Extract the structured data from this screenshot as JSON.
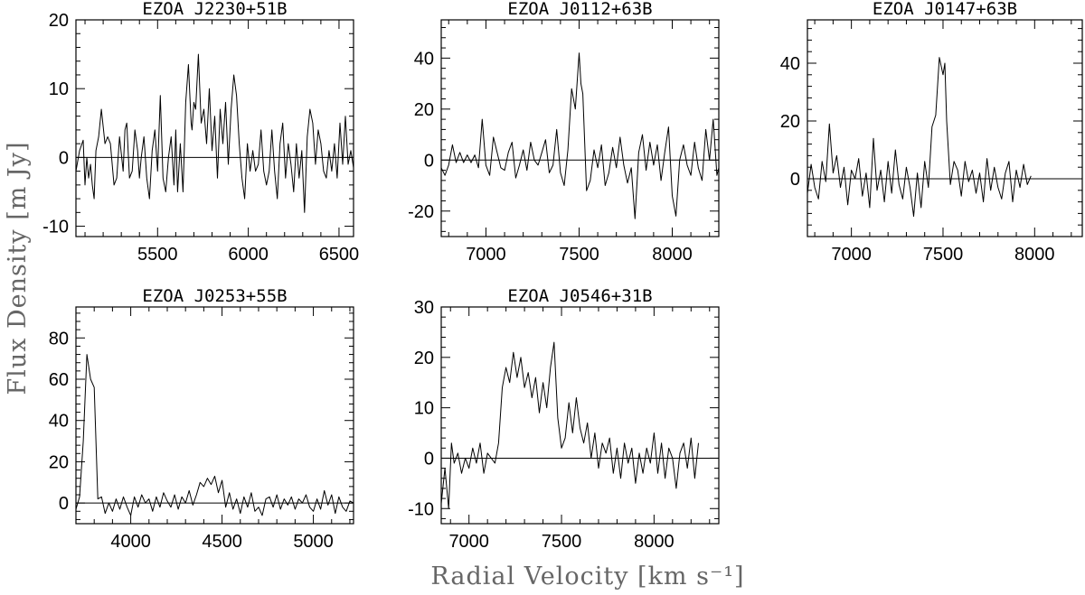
{
  "figure": {
    "xlabel": "Radial Velocity [km s⁻¹]",
    "ylabel": "Flux Density [m Jy]"
  },
  "chart_data": [
    {
      "type": "line",
      "title": "EZOA J2230+51B",
      "xlim": [
        5050,
        6580
      ],
      "ylim": [
        -11.5,
        20
      ],
      "xticks": [
        5500,
        6000,
        6500
      ],
      "yticks": [
        -10,
        0,
        10,
        20
      ],
      "zero_line": true,
      "series": [
        {
          "x": [
            5050,
            5070,
            5090,
            5100,
            5110,
            5120,
            5130,
            5140,
            5150,
            5160,
            5175,
            5190,
            5210,
            5225,
            5240,
            5260,
            5275,
            5290,
            5310,
            5320,
            5330,
            5345,
            5360,
            5375,
            5390,
            5400,
            5410,
            5425,
            5440,
            5455,
            5470,
            5485,
            5500,
            5515,
            5530,
            5545,
            5560,
            5575,
            5590,
            5600,
            5610,
            5625,
            5640,
            5655,
            5670,
            5685,
            5690,
            5700,
            5710,
            5725,
            5740,
            5755,
            5770,
            5785,
            5800,
            5815,
            5830,
            5845,
            5860,
            5875,
            5890,
            5905,
            5920,
            5935,
            5950,
            5965,
            5980,
            5995,
            6010,
            6025,
            6040,
            6055,
            6070,
            6085,
            6100,
            6115,
            6130,
            6145,
            6160,
            6175,
            6190,
            6205,
            6220,
            6235,
            6250,
            6265,
            6280,
            6295,
            6310,
            6325,
            6340,
            6355,
            6370,
            6385,
            6400,
            6415,
            6430,
            6445,
            6460,
            6475,
            6490,
            6505,
            6520,
            6535,
            6550,
            6565,
            6580
          ],
          "y": [
            -2,
            1,
            2.5,
            -4,
            0,
            -3,
            -1,
            -4,
            -6,
            1,
            3,
            7,
            2,
            3,
            2,
            -4,
            -3,
            3,
            -2,
            4,
            5,
            -3,
            -2,
            4,
            1,
            -3,
            0,
            3,
            -3,
            -6,
            1,
            4,
            -2,
            9,
            -3,
            -5,
            0,
            3,
            -4,
            4,
            -5,
            2,
            -5,
            8,
            13.5,
            5,
            4,
            8,
            7,
            15,
            5,
            7,
            2,
            10,
            1,
            6,
            -3,
            7,
            2,
            8,
            -1,
            7,
            12,
            9,
            2,
            -3,
            -6,
            2,
            -2,
            1,
            -2,
            -1,
            4,
            -2,
            -4,
            -2,
            4,
            -2,
            -6,
            2,
            5,
            -3,
            2,
            -1,
            -5,
            2,
            -3,
            1,
            -8,
            3,
            7,
            5,
            -1,
            4,
            2,
            -2,
            -3,
            1,
            -2,
            2,
            -3,
            5,
            -1,
            6,
            -1,
            1,
            -1.5
          ]
        }
      ]
    },
    {
      "type": "line",
      "title": "EZOA J0112+63B",
      "xlim": [
        6760,
        8250
      ],
      "ylim": [
        -30,
        55
      ],
      "xticks": [
        7000,
        7500,
        8000
      ],
      "yticks": [
        -20,
        0,
        20,
        40
      ],
      "zero_line": true,
      "series": [
        {
          "x": [
            6760,
            6780,
            6800,
            6820,
            6840,
            6860,
            6880,
            6900,
            6920,
            6940,
            6960,
            6980,
            7000,
            7020,
            7040,
            7060,
            7080,
            7100,
            7120,
            7140,
            7160,
            7180,
            7200,
            7220,
            7240,
            7260,
            7280,
            7300,
            7320,
            7340,
            7360,
            7380,
            7400,
            7420,
            7440,
            7460,
            7480,
            7500,
            7510,
            7520,
            7540,
            7560,
            7580,
            7600,
            7620,
            7640,
            7660,
            7680,
            7700,
            7720,
            7740,
            7760,
            7780,
            7800,
            7820,
            7840,
            7860,
            7880,
            7900,
            7920,
            7940,
            7960,
            7980,
            8000,
            8020,
            8040,
            8060,
            8080,
            8100,
            8120,
            8140,
            8160,
            8180,
            8200,
            8220,
            8240,
            8250
          ],
          "y": [
            -3,
            -6,
            -2,
            6,
            -1,
            3,
            -1,
            2,
            -1,
            2,
            -3,
            16,
            -2,
            -6,
            9,
            3,
            -3,
            -4,
            3,
            7,
            -7,
            -2,
            4,
            -4,
            7,
            0,
            -2,
            3,
            8,
            -5,
            -2,
            12,
            -5,
            -10,
            4,
            28,
            20,
            42,
            30,
            26,
            -12,
            -8,
            4,
            -3,
            6,
            -10,
            -5,
            5,
            -3,
            9,
            -2,
            -9,
            -3,
            -23,
            3,
            10,
            -4,
            7,
            -2,
            6,
            -8,
            3,
            13,
            -14,
            -22,
            0,
            6,
            -2,
            -6,
            7,
            -3,
            -8,
            12,
            0,
            16,
            -6,
            -3
          ]
        }
      ]
    },
    {
      "type": "line",
      "title": "EZOA J0147+63B",
      "xlim": [
        6760,
        8260
      ],
      "ylim": [
        -20,
        55
      ],
      "xticks": [
        7000,
        7500,
        8000
      ],
      "yticks": [
        0,
        20,
        40
      ],
      "zero_line": true,
      "series": [
        {
          "x": [
            6760,
            6780,
            6800,
            6820,
            6840,
            6860,
            6880,
            6900,
            6920,
            6940,
            6960,
            6980,
            7000,
            7020,
            7040,
            7060,
            7080,
            7100,
            7120,
            7140,
            7160,
            7180,
            7200,
            7220,
            7240,
            7260,
            7280,
            7300,
            7320,
            7340,
            7360,
            7380,
            7400,
            7420,
            7440,
            7460,
            7480,
            7500,
            7510,
            7520,
            7540,
            7560,
            7580,
            7600,
            7620,
            7640,
            7660,
            7680,
            7700,
            7720,
            7740,
            7760,
            7780,
            7800,
            7820,
            7840,
            7860,
            7880,
            7900,
            7920,
            7940,
            7960,
            7980
          ],
          "y": [
            -5,
            5,
            -3,
            -7,
            6,
            -1,
            19,
            2,
            8,
            -3,
            4,
            -9,
            3,
            0,
            7,
            -6,
            2,
            -10,
            14,
            -4,
            3,
            -8,
            6,
            -5,
            10,
            -2,
            -7,
            4,
            -3,
            -13,
            2,
            -10,
            6,
            -3,
            18,
            22,
            42,
            36,
            40,
            20,
            -2,
            6,
            3,
            -6,
            6,
            -1,
            3,
            -5,
            2,
            -8,
            7,
            -4,
            4,
            -3,
            -7,
            2,
            6,
            -8,
            3,
            -3,
            5,
            -2,
            1
          ]
        }
      ]
    },
    {
      "type": "line",
      "title": "EZOA J0253+55B",
      "xlim": [
        3700,
        5220
      ],
      "ylim": [
        -10,
        95
      ],
      "xticks": [
        4000,
        4500,
        5000
      ],
      "yticks": [
        0,
        20,
        40,
        60,
        80
      ],
      "zero_line": true,
      "series": [
        {
          "x": [
            3700,
            3720,
            3740,
            3760,
            3780,
            3800,
            3820,
            3840,
            3860,
            3880,
            3900,
            3920,
            3940,
            3960,
            3980,
            4000,
            4020,
            4040,
            4060,
            4080,
            4100,
            4120,
            4140,
            4160,
            4180,
            4200,
            4220,
            4240,
            4260,
            4280,
            4300,
            4320,
            4340,
            4360,
            4380,
            4400,
            4420,
            4440,
            4460,
            4480,
            4500,
            4520,
            4540,
            4560,
            4580,
            4600,
            4620,
            4640,
            4660,
            4680,
            4700,
            4720,
            4740,
            4760,
            4780,
            4800,
            4820,
            4840,
            4860,
            4880,
            4900,
            4920,
            4940,
            4960,
            4980,
            5000,
            5020,
            5040,
            5060,
            5080,
            5100,
            5120,
            5140,
            5160,
            5180,
            5200,
            5220
          ],
          "y": [
            -3,
            3,
            30,
            72,
            60,
            56,
            2,
            3,
            -5,
            0,
            -4,
            2,
            -3,
            3,
            -2,
            -6,
            3,
            -2,
            4,
            0,
            2,
            -4,
            3,
            -2,
            5,
            1,
            -2,
            4,
            -3,
            3,
            0,
            6,
            -1,
            4,
            10,
            8,
            12,
            9,
            13,
            5,
            11,
            -2,
            5,
            -3,
            2,
            -5,
            3,
            -2,
            5,
            -4,
            -2,
            -6,
            2,
            3,
            -2,
            4,
            -3,
            2,
            -1,
            3,
            -3,
            2,
            0,
            4,
            -2,
            -4,
            2,
            -3,
            6,
            -1,
            4,
            -5,
            3,
            -2,
            -4,
            1,
            0
          ]
        }
      ]
    },
    {
      "type": "line",
      "title": "EZOA J0546+31B",
      "xlim": [
        6850,
        8350
      ],
      "ylim": [
        -13,
        30
      ],
      "xticks": [
        7000,
        7500,
        8000
      ],
      "yticks": [
        -10,
        0,
        10,
        20,
        30
      ],
      "zero_line": true,
      "series": [
        {
          "x": [
            6850,
            6870,
            6890,
            6905,
            6920,
            6940,
            6960,
            6980,
            7000,
            7020,
            7040,
            7060,
            7080,
            7100,
            7120,
            7140,
            7160,
            7180,
            7200,
            7220,
            7240,
            7260,
            7280,
            7300,
            7320,
            7340,
            7360,
            7380,
            7400,
            7420,
            7440,
            7460,
            7480,
            7500,
            7520,
            7540,
            7560,
            7580,
            7600,
            7620,
            7640,
            7660,
            7680,
            7700,
            7720,
            7740,
            7760,
            7780,
            7800,
            7820,
            7840,
            7860,
            7880,
            7900,
            7920,
            7940,
            7960,
            7980,
            8000,
            8020,
            8040,
            8060,
            8080,
            8100,
            8120,
            8140,
            8160,
            8180,
            8200,
            8220,
            8240
          ],
          "y": [
            -9,
            -2,
            -10,
            3,
            -1,
            1,
            -3,
            0,
            -2,
            2,
            -1,
            3,
            -3,
            1,
            0,
            -1,
            3,
            14,
            18,
            15,
            21,
            16,
            20,
            14,
            17,
            12,
            16,
            9,
            15,
            10,
            18,
            23,
            8,
            2,
            4,
            11,
            5,
            12,
            6,
            3,
            7,
            0,
            5,
            -2,
            3,
            1,
            4,
            -3,
            2,
            -4,
            3,
            -1,
            2,
            -5,
            1,
            -3,
            2,
            -1,
            5,
            -3,
            3,
            -4,
            2,
            0,
            -6,
            1,
            3,
            -2,
            4,
            -4,
            3
          ]
        }
      ]
    }
  ]
}
